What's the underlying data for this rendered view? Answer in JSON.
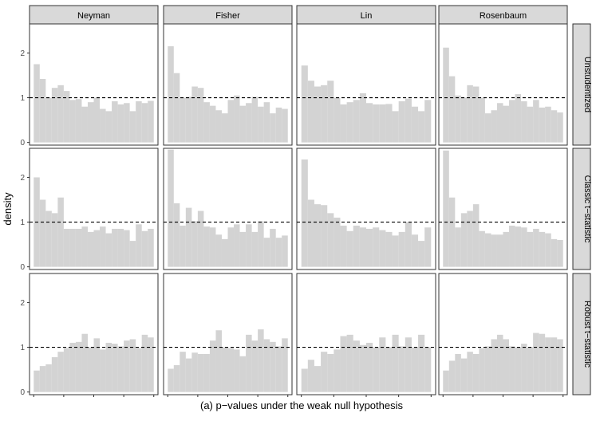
{
  "chart_data": {
    "type": "bar",
    "title": "",
    "xlabel": "(a) p−values under the weak null hypothesis",
    "ylabel": "density",
    "ylim": [
      -0.06,
      2.65
    ],
    "yticks": [
      "0",
      "1",
      "2"
    ],
    "xlim": [
      -0.035,
      1.035
    ],
    "grid": false,
    "reference_line": {
      "y": 1,
      "style": "dashed"
    },
    "columns": [
      "Neyman",
      "Fisher",
      "Lin",
      "Rosenbaum"
    ],
    "rows": [
      "Unstudentized",
      "Classic t−statistic",
      "Robust t−statistic"
    ],
    "bins": 20,
    "bin_range": [
      0,
      1
    ],
    "panels": [
      [
        [
          1.75,
          1.42,
          1.0,
          1.22,
          1.28,
          1.15,
          0.95,
          0.97,
          0.8,
          0.9,
          1.0,
          0.75,
          0.7,
          0.92,
          0.85,
          0.88,
          0.7,
          0.92,
          0.88,
          0.93
        ],
        [
          2.15,
          1.55,
          1.0,
          1.02,
          1.25,
          1.22,
          0.9,
          0.82,
          0.72,
          0.65,
          0.95,
          1.05,
          0.82,
          0.88,
          1.02,
          0.8,
          0.9,
          0.65,
          0.78,
          0.75
        ],
        [
          1.72,
          1.38,
          1.25,
          1.28,
          1.38,
          1.0,
          0.85,
          0.9,
          0.95,
          1.1,
          0.88,
          0.85,
          0.85,
          0.86,
          0.7,
          0.92,
          0.98,
          0.8,
          0.7,
          0.95
        ],
        [
          2.12,
          1.48,
          1.05,
          1.0,
          1.28,
          1.25,
          1.0,
          0.65,
          0.72,
          0.88,
          0.82,
          0.95,
          1.08,
          0.92,
          0.8,
          0.95,
          0.78,
          0.8,
          0.72,
          0.67
        ]
      ],
      [
        [
          2.0,
          1.5,
          1.25,
          1.2,
          1.55,
          0.85,
          0.85,
          0.85,
          0.9,
          0.78,
          0.82,
          0.9,
          0.75,
          0.85,
          0.85,
          0.82,
          0.58,
          0.95,
          0.8,
          0.85
        ],
        [
          2.62,
          1.42,
          0.92,
          1.32,
          1.02,
          1.25,
          0.9,
          0.88,
          0.72,
          0.62,
          0.88,
          0.95,
          0.78,
          0.95,
          0.78,
          1.02,
          0.65,
          0.85,
          0.65,
          0.7
        ],
        [
          2.4,
          1.5,
          1.4,
          1.38,
          1.2,
          1.1,
          0.92,
          0.8,
          0.92,
          0.88,
          0.85,
          0.88,
          0.82,
          0.78,
          0.7,
          0.78,
          1.0,
          0.72,
          0.58,
          0.88
        ],
        [
          2.6,
          1.55,
          0.88,
          1.2,
          1.25,
          1.4,
          0.8,
          0.75,
          0.72,
          0.72,
          0.78,
          0.92,
          0.9,
          0.88,
          0.78,
          0.85,
          0.78,
          0.75,
          0.62,
          0.6
        ]
      ],
      [
        [
          0.48,
          0.58,
          0.62,
          0.78,
          0.9,
          0.98,
          1.1,
          1.12,
          1.3,
          1.0,
          1.2,
          0.95,
          1.1,
          1.08,
          1.02,
          1.15,
          1.18,
          0.98,
          1.28,
          1.22
        ],
        [
          0.52,
          0.6,
          0.9,
          0.75,
          0.88,
          0.85,
          0.85,
          1.15,
          1.38,
          1.0,
          0.98,
          0.95,
          0.8,
          1.28,
          1.15,
          1.4,
          1.18,
          1.12,
          1.02,
          1.2
        ],
        [
          0.52,
          0.72,
          0.58,
          0.9,
          0.85,
          0.95,
          1.25,
          1.28,
          1.15,
          1.05,
          1.1,
          1.0,
          1.22,
          1.0,
          1.28,
          1.02,
          1.22,
          1.0,
          1.28,
          1.0
        ],
        [
          0.48,
          0.7,
          0.85,
          0.75,
          0.9,
          0.85,
          0.98,
          1.02,
          1.18,
          1.28,
          1.18,
          1.02,
          1.0,
          1.08,
          1.0,
          1.32,
          1.3,
          1.22,
          1.22,
          1.18
        ]
      ]
    ]
  }
}
